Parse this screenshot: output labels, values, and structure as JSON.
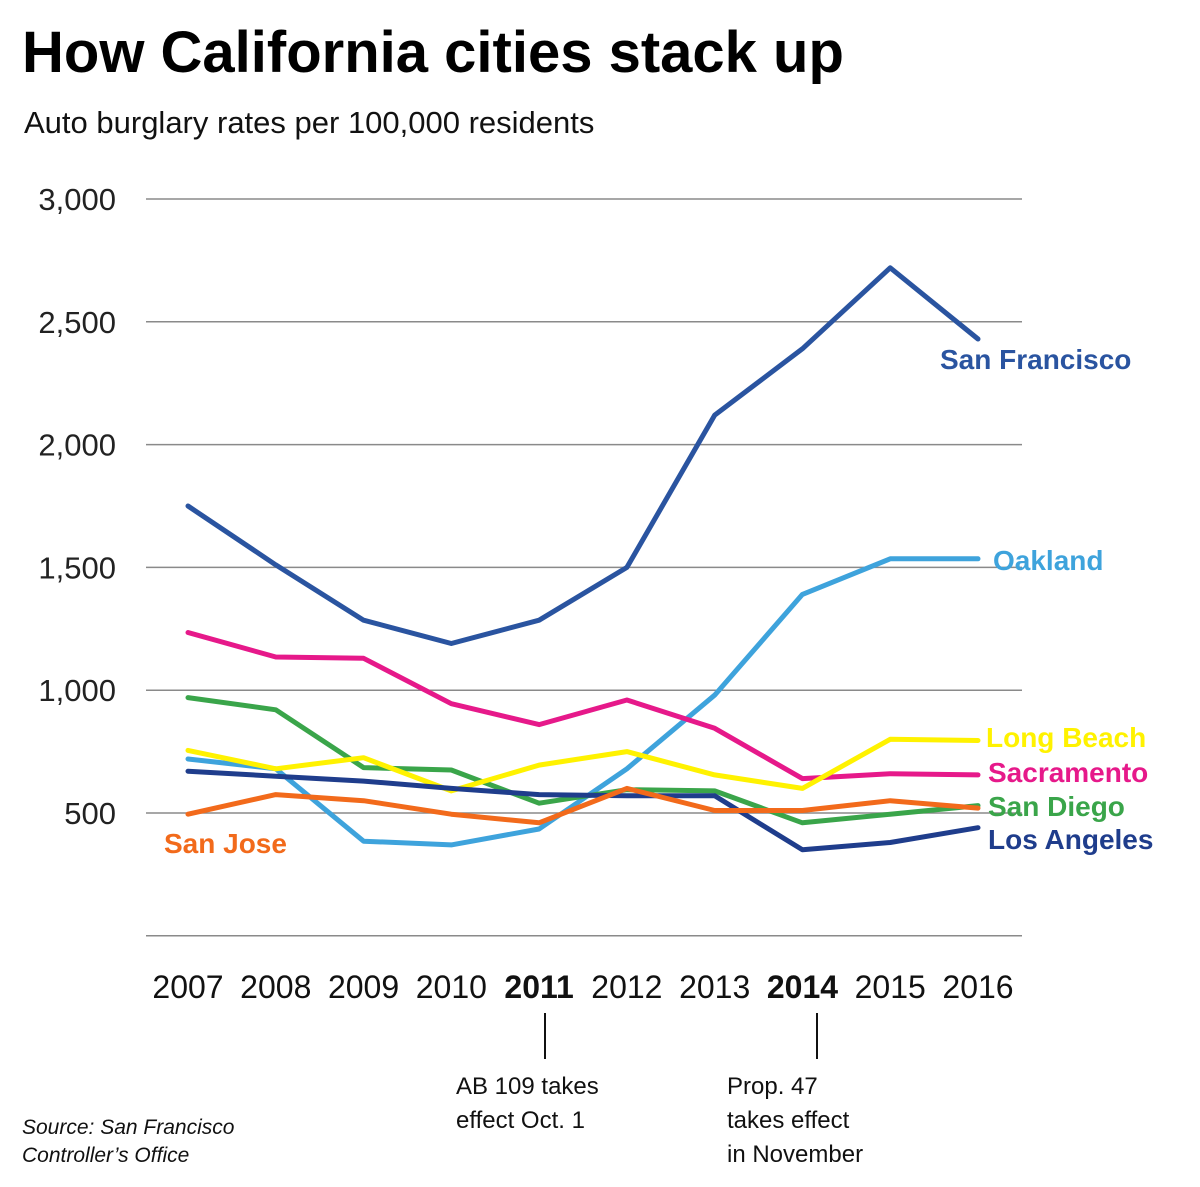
{
  "chart_data": {
    "type": "line",
    "title": "How California cities stack up",
    "subtitle": "Auto burglary rates per 100,000 residents",
    "categories": [
      "2007",
      "2008",
      "2009",
      "2010",
      "2011",
      "2012",
      "2013",
      "2014",
      "2015",
      "2016"
    ],
    "bold_categories": [
      "2011",
      "2014"
    ],
    "y_ticks": [
      "3,000",
      "2,500",
      "2,000",
      "1,500",
      "1,000",
      "500"
    ],
    "ylim": [
      0,
      3000
    ],
    "grid": true,
    "series": [
      {
        "name": "San Francisco",
        "color": "#2a54a0",
        "values": [
          1750,
          1510,
          1285,
          1190,
          1285,
          1500,
          2120,
          2390,
          2720,
          2430
        ]
      },
      {
        "name": "Oakland",
        "color": "#3ea3dc",
        "values": [
          720,
          680,
          385,
          370,
          435,
          680,
          980,
          1390,
          1535,
          1535
        ]
      },
      {
        "name": "Sacramento",
        "color": "#e6198a",
        "values": [
          1235,
          1135,
          1130,
          945,
          860,
          960,
          845,
          640,
          660,
          655
        ]
      },
      {
        "name": "San Diego",
        "color": "#3aa54a",
        "values": [
          970,
          920,
          685,
          675,
          540,
          595,
          590,
          460,
          495,
          530
        ]
      },
      {
        "name": "Long Beach",
        "color": "#fff200",
        "values": [
          755,
          680,
          725,
          590,
          695,
          750,
          655,
          600,
          800,
          795
        ]
      },
      {
        "name": "Los Angeles",
        "color": "#1f3d8c",
        "values": [
          670,
          650,
          630,
          600,
          575,
          570,
          570,
          350,
          380,
          440
        ]
      },
      {
        "name": "San Jose",
        "color": "#f26a1b",
        "values": [
          495,
          575,
          550,
          495,
          460,
          600,
          510,
          510,
          550,
          520
        ]
      }
    ],
    "annotations": [
      {
        "category": "2011",
        "lines": [
          "AB 109 takes",
          "effect Oct. 1"
        ]
      },
      {
        "category": "2014",
        "lines": [
          "Prop. 47",
          "takes effect",
          "in November"
        ]
      }
    ],
    "source": [
      "Source: San Francisco",
      "Controller’s Office"
    ]
  }
}
